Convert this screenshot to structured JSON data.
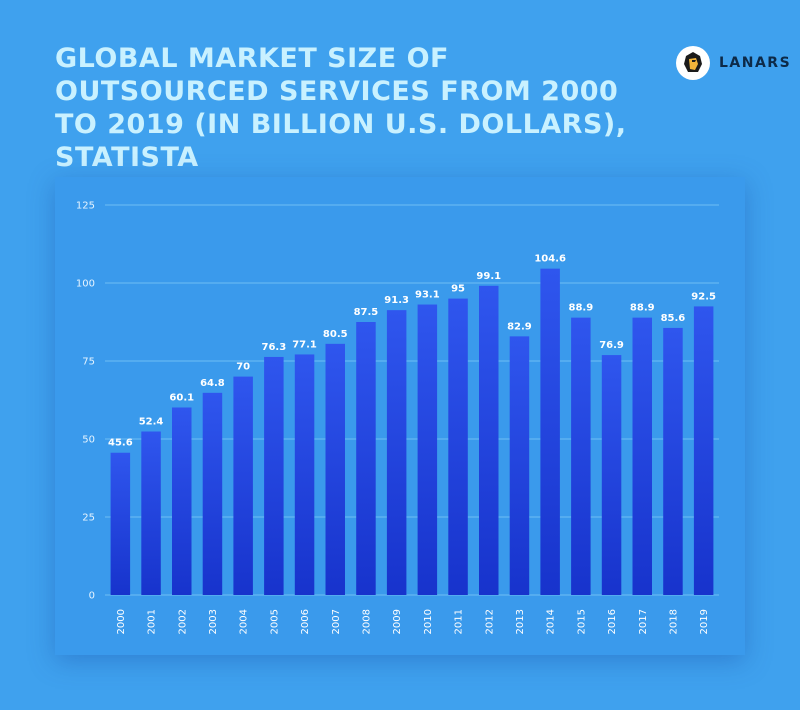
{
  "header": {
    "title": "GLOBAL MARKET SIZE OF OUTSOURCED SERVICES FROM 2000 TO 2019 (IN BILLION U.S. DOLLARS), STATISTA"
  },
  "brand": {
    "name": "LANARS",
    "icon": "lion-head-icon"
  },
  "colors": {
    "background": "#3fa1ee",
    "title": "#c9f1ff",
    "bar_top": "#2f56ee",
    "bar_bottom": "#1733cc",
    "grid": "#6fbdf5"
  },
  "chart_data": {
    "type": "bar",
    "title": "GLOBAL MARKET SIZE OF OUTSOURCED SERVICES FROM 2000 TO 2019 (IN BILLION U.S. DOLLARS), STATISTA",
    "xlabel": "",
    "ylabel": "",
    "categories": [
      "2000",
      "2001",
      "2002",
      "2003",
      "2004",
      "2005",
      "2006",
      "2007",
      "2008",
      "2009",
      "2010",
      "2011",
      "2012",
      "2013",
      "2014",
      "2015",
      "2016",
      "2017",
      "2018",
      "2019"
    ],
    "values": [
      45.6,
      52.4,
      60.1,
      64.8,
      70,
      76.3,
      77.1,
      80.5,
      87.5,
      91.3,
      93.1,
      95,
      99.1,
      82.9,
      104.6,
      88.9,
      76.9,
      88.9,
      85.6,
      92.5
    ],
    "ylim": [
      0,
      125
    ],
    "yticks": [
      0,
      25,
      50,
      75,
      100,
      125
    ],
    "grid": true,
    "legend": "none",
    "data_labels": true
  }
}
